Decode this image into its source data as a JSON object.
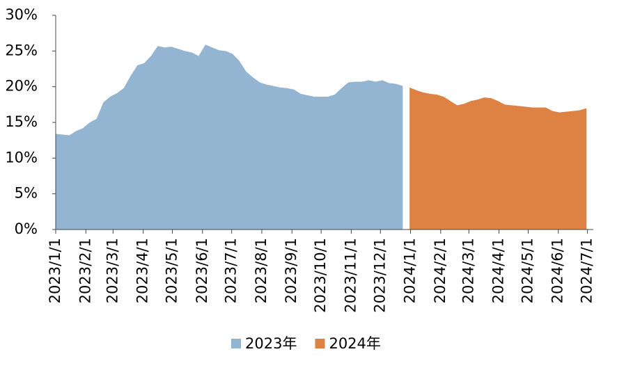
{
  "chart_data": {
    "type": "area",
    "x": [
      "2023/1/1",
      "2023/1/8",
      "2023/1/15",
      "2023/1/22",
      "2023/1/29",
      "2023/2/5",
      "2023/2/12",
      "2023/2/19",
      "2023/2/26",
      "2023/3/5",
      "2023/3/12",
      "2023/3/19",
      "2023/3/26",
      "2023/4/2",
      "2023/4/9",
      "2023/4/16",
      "2023/4/23",
      "2023/4/30",
      "2023/5/7",
      "2023/5/14",
      "2023/5/21",
      "2023/5/28",
      "2023/6/4",
      "2023/6/11",
      "2023/6/18",
      "2023/6/25",
      "2023/7/2",
      "2023/7/9",
      "2023/7/16",
      "2023/7/23",
      "2023/7/30",
      "2023/8/6",
      "2023/8/13",
      "2023/8/20",
      "2023/8/27",
      "2023/9/3",
      "2023/9/10",
      "2023/9/17",
      "2023/9/24",
      "2023/10/1",
      "2023/10/8",
      "2023/10/15",
      "2023/10/22",
      "2023/10/29",
      "2023/11/5",
      "2023/11/12",
      "2023/11/19",
      "2023/11/26",
      "2023/12/3",
      "2023/12/10",
      "2023/12/17",
      "2023/12/24",
      "2023/12/31",
      "2024/1/7",
      "2024/1/14",
      "2024/1/21",
      "2024/1/28",
      "2024/2/4",
      "2024/2/11",
      "2024/2/18",
      "2024/2/25",
      "2024/3/3",
      "2024/3/10",
      "2024/3/17",
      "2024/3/24",
      "2024/3/31",
      "2024/4/7",
      "2024/4/14",
      "2024/4/21",
      "2024/4/28",
      "2024/5/5",
      "2024/5/12",
      "2024/5/19",
      "2024/5/26",
      "2024/6/2",
      "2024/6/9",
      "2024/6/16",
      "2024/6/23",
      "2024/6/30"
    ],
    "series": [
      {
        "name": "2023年",
        "color": "#93b5d1",
        "values": [
          13.4,
          13.3,
          13.2,
          13.8,
          14.2,
          15.0,
          15.5,
          17.8,
          18.6,
          19.1,
          19.8,
          21.5,
          23.0,
          23.3,
          24.3,
          25.7,
          25.5,
          25.6,
          25.3,
          25.0,
          24.8,
          24.3,
          25.9,
          25.5,
          25.1,
          25.0,
          24.6,
          23.6,
          22.1,
          21.3,
          20.6,
          20.3,
          20.1,
          19.9,
          19.8,
          19.6,
          19.0,
          18.8,
          18.6,
          18.6,
          18.6,
          18.9,
          19.8,
          20.6,
          20.7,
          20.7,
          20.9,
          20.7,
          20.9,
          20.5,
          20.4,
          20.1,
          null,
          null,
          null,
          null,
          null,
          null,
          null,
          null,
          null,
          null,
          null,
          null,
          null,
          null,
          null,
          null,
          null,
          null,
          null,
          null,
          null,
          null,
          null,
          null,
          null,
          null,
          null
        ]
      },
      {
        "name": "2024年",
        "color": "#de8244",
        "values": [
          null,
          null,
          null,
          null,
          null,
          null,
          null,
          null,
          null,
          null,
          null,
          null,
          null,
          null,
          null,
          null,
          null,
          null,
          null,
          null,
          null,
          null,
          null,
          null,
          null,
          null,
          null,
          null,
          null,
          null,
          null,
          null,
          null,
          null,
          null,
          null,
          null,
          null,
          null,
          null,
          null,
          null,
          null,
          null,
          null,
          null,
          null,
          null,
          null,
          null,
          null,
          null,
          19.9,
          19.5,
          19.2,
          19.0,
          18.9,
          18.6,
          18.0,
          17.4,
          17.6,
          18.0,
          18.2,
          18.5,
          18.4,
          18.0,
          17.5,
          17.4,
          17.3,
          17.2,
          17.1,
          17.1,
          17.1,
          16.6,
          16.4,
          16.5,
          16.6,
          16.7,
          17.0
        ]
      }
    ],
    "xlim": [
      "2023/1/1",
      "2024/7/7"
    ],
    "xticks": [
      "2023/1/1",
      "2023/2/1",
      "2023/3/1",
      "2023/4/1",
      "2023/5/1",
      "2023/6/1",
      "2023/7/1",
      "2023/8/1",
      "2023/9/1",
      "2023/10/1",
      "2023/11/1",
      "2023/12/1",
      "2024/1/1",
      "2024/2/1",
      "2024/3/1",
      "2024/4/1",
      "2024/5/1",
      "2024/6/1",
      "2024/7/1"
    ],
    "ylim": [
      0,
      30
    ],
    "yticks": [
      {
        "value": 0,
        "label": "0%"
      },
      {
        "value": 5,
        "label": "5%"
      },
      {
        "value": 10,
        "label": "10%"
      },
      {
        "value": 15,
        "label": "15%"
      },
      {
        "value": 20,
        "label": "20%"
      },
      {
        "value": 25,
        "label": "25%"
      },
      {
        "value": 30,
        "label": "30%"
      }
    ],
    "grid": false
  }
}
